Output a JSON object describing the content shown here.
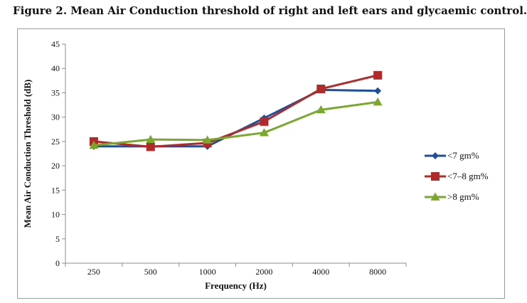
{
  "figure": {
    "title": "Figure 2. Mean Air Conduction threshold of right and left ears and glycaemic control."
  },
  "chart_data": {
    "type": "line",
    "title": "",
    "xlabel": "Frequency (Hz)",
    "ylabel": "Mean Air Conduction Threshold (dB)",
    "categories": [
      "250",
      "500",
      "1000",
      "2000",
      "4000",
      "8000"
    ],
    "ylim": [
      0,
      45
    ],
    "yticks": [
      0,
      5,
      10,
      15,
      20,
      25,
      30,
      35,
      40,
      45
    ],
    "grid": false,
    "legend_position": "right",
    "series": [
      {
        "name": "<7 gm%",
        "color": "#1f4e9c",
        "marker": "diamond",
        "values": [
          24.0,
          24.0,
          24.0,
          29.8,
          35.6,
          35.4
        ]
      },
      {
        "name": "<7–8 gm%",
        "color": "#b02a2a",
        "marker": "square",
        "values": [
          25.0,
          23.9,
          24.7,
          29.1,
          35.8,
          38.6
        ]
      },
      {
        "name": ">8 gm%",
        "color": "#7aa82c",
        "marker": "triangle",
        "values": [
          24.2,
          25.4,
          25.3,
          26.8,
          31.5,
          33.1
        ]
      }
    ]
  }
}
